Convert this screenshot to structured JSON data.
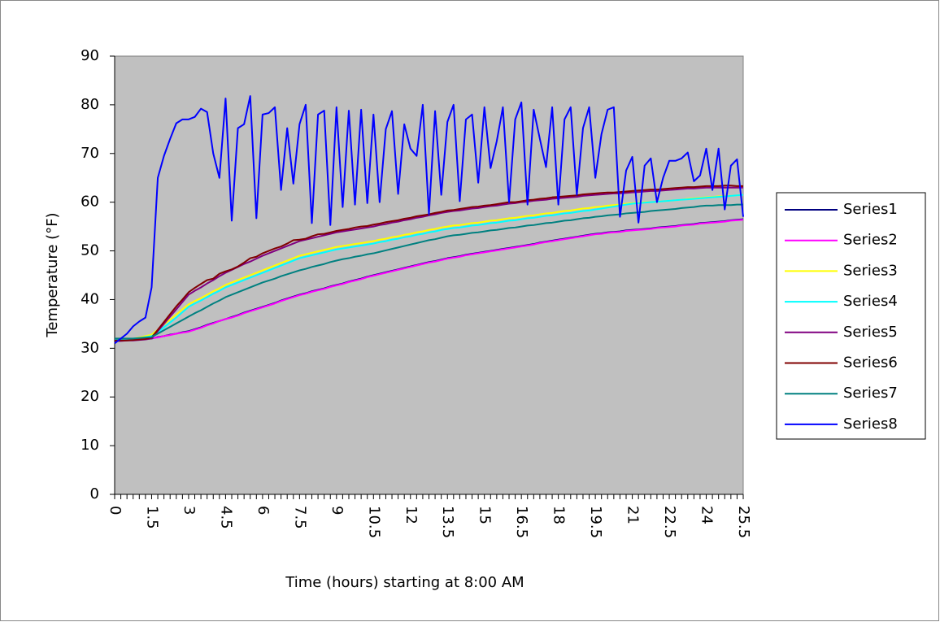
{
  "chart_data": {
    "type": "line",
    "y_label": "Temperature (°F)",
    "x_label": "Time (hours) starting at 8:00 AM",
    "ylim": [
      0,
      90
    ],
    "yticks": [
      0,
      10,
      20,
      30,
      40,
      50,
      60,
      70,
      80,
      90
    ],
    "legend": "right",
    "plot_background": "#c0c0c0",
    "categories": [
      0,
      null,
      null,
      null,
      null,
      null,
      1.5,
      null,
      null,
      null,
      null,
      null,
      3,
      null,
      null,
      null,
      null,
      null,
      4.5,
      null,
      null,
      null,
      null,
      null,
      6,
      null,
      null,
      null,
      null,
      null,
      7.5,
      null,
      null,
      null,
      null,
      null,
      9,
      null,
      null,
      null,
      null,
      null,
      10.5,
      null,
      null,
      null,
      null,
      null,
      12,
      null,
      null,
      null,
      null,
      null,
      13.5,
      null,
      null,
      null,
      null,
      null,
      15,
      null,
      null,
      null,
      null,
      null,
      16.5,
      null,
      null,
      null,
      null,
      null,
      18,
      null,
      null,
      null,
      null,
      null,
      19.5,
      null,
      null,
      null,
      null,
      null,
      21,
      null,
      null,
      null,
      null,
      null,
      22.5,
      null,
      null,
      null,
      null,
      null,
      24,
      null,
      null,
      null,
      null,
      null,
      25.5
    ],
    "series": [
      {
        "name": "Series1",
        "color": "#000080",
        "values": [
          31.5,
          31.6,
          31.7,
          31.8,
          31.8,
          31.9,
          32,
          32.3,
          32.5,
          32.8,
          33,
          33.3,
          33.5,
          33.9,
          34.3,
          34.8,
          35.2,
          35.6,
          36,
          36.4,
          36.8,
          37.3,
          37.7,
          38.1,
          38.5,
          38.9,
          39.3,
          39.8,
          40.2,
          40.6,
          41,
          41.3,
          41.7,
          42,
          42.3,
          42.7,
          43,
          43.3,
          43.7,
          44,
          44.3,
          44.7,
          45,
          45.3,
          45.6,
          45.9,
          46.2,
          46.5,
          46.8,
          47.1,
          47.4,
          47.7,
          47.9,
          48.2,
          48.5,
          48.7,
          48.9,
          49.2,
          49.4,
          49.6,
          49.8,
          50,
          50.2,
          50.4,
          50.6,
          50.8,
          51,
          51.2,
          51.4,
          51.7,
          51.9,
          52.1,
          52.3,
          52.5,
          52.7,
          52.9,
          53.1,
          53.3,
          53.5,
          53.6,
          53.8,
          53.9,
          54,
          54.2,
          54.3,
          54.4,
          54.5,
          54.6,
          54.8,
          54.9,
          55,
          55.1,
          55.3,
          55.4,
          55.5,
          55.7,
          55.8,
          55.9,
          56,
          56.1,
          56.3,
          56.4,
          56.5
        ]
      },
      {
        "name": "Series2",
        "color": "#ff00ff",
        "values": [
          31.6,
          31.6,
          31.7,
          31.7,
          31.8,
          31.9,
          32.1,
          32.2,
          32.5,
          32.7,
          33,
          33.2,
          33.4,
          33.8,
          34.2,
          34.7,
          35.1,
          35.6,
          36,
          36.3,
          36.7,
          37.2,
          37.6,
          38,
          38.4,
          38.8,
          39.2,
          39.7,
          40.1,
          40.5,
          40.9,
          41.2,
          41.6,
          41.9,
          42.2,
          42.6,
          42.9,
          43.2,
          43.6,
          43.9,
          44.2,
          44.6,
          44.9,
          45.2,
          45.5,
          45.8,
          46.1,
          46.4,
          46.7,
          47,
          47.3,
          47.6,
          47.8,
          48.1,
          48.4,
          48.6,
          48.8,
          49.1,
          49.3,
          49.5,
          49.7,
          49.9,
          50.1,
          50.3,
          50.5,
          50.7,
          50.9,
          51.1,
          51.3,
          51.6,
          51.8,
          52,
          52.2,
          52.4,
          52.6,
          52.8,
          53,
          53.2,
          53.4,
          53.5,
          53.7,
          53.8,
          53.9,
          54.1,
          54.2,
          54.3,
          54.4,
          54.5,
          54.7,
          54.8,
          54.9,
          55,
          55.2,
          55.3,
          55.4,
          55.6,
          55.7,
          55.8,
          55.9,
          56,
          56.2,
          56.3,
          56.4
        ]
      },
      {
        "name": "Series3",
        "color": "#ffff00",
        "values": [
          31.8,
          31.8,
          31.9,
          32,
          32.2,
          32.5,
          32.8,
          33.8,
          34.9,
          35.9,
          36.9,
          38,
          39,
          39.7,
          40.3,
          41,
          41.7,
          42.3,
          43,
          43.5,
          44,
          44.5,
          45,
          45.5,
          46,
          46.5,
          47,
          47.5,
          48,
          48.5,
          49,
          49.3,
          49.6,
          49.9,
          50.2,
          50.5,
          50.8,
          51,
          51.2,
          51.4,
          51.6,
          51.8,
          52,
          52.3,
          52.5,
          52.8,
          53,
          53.3,
          53.5,
          53.8,
          54,
          54.3,
          54.5,
          54.8,
          55,
          55.2,
          55.3,
          55.5,
          55.7,
          55.8,
          56,
          56.2,
          56.3,
          56.5,
          56.7,
          56.8,
          57,
          57.2,
          57.3,
          57.5,
          57.7,
          57.8,
          58,
          58.2,
          58.3,
          58.5,
          58.7,
          58.8,
          59,
          59.1,
          59.3,
          59.4,
          59.5,
          59.7,
          59.8,
          59.9,
          60,
          60,
          60.1,
          60.2,
          60.3,
          60.4,
          60.5,
          60.7,
          60.8,
          60.9,
          61,
          61.1,
          61.2,
          61.3,
          61.3,
          61.4,
          61.5
        ]
      },
      {
        "name": "Series4",
        "color": "#00ffff",
        "values": [
          31.8,
          31.8,
          31.9,
          32,
          32.1,
          32.3,
          32.5,
          33.3,
          34.3,
          35.3,
          36.3,
          37.4,
          38.5,
          39.2,
          39.8,
          40.5,
          41.2,
          41.8,
          42.5,
          43,
          43.5,
          44,
          44.5,
          45,
          45.5,
          46,
          46.5,
          47,
          47.5,
          48,
          48.5,
          48.8,
          49.1,
          49.4,
          49.7,
          50,
          50.3,
          50.5,
          50.7,
          50.9,
          51.1,
          51.3,
          51.5,
          51.8,
          52,
          52.3,
          52.5,
          52.8,
          53,
          53.3,
          53.5,
          53.8,
          54,
          54.3,
          54.5,
          54.7,
          54.8,
          55,
          55.2,
          55.3,
          55.5,
          55.7,
          55.8,
          56,
          56.2,
          56.3,
          56.5,
          56.7,
          56.8,
          57,
          57.2,
          57.3,
          57.5,
          57.7,
          57.8,
          58,
          58.2,
          58.3,
          58.5,
          58.7,
          58.9,
          59.1,
          59.3,
          59.5,
          59.7,
          59.8,
          59.9,
          60,
          60.1,
          60.2,
          60.3,
          60.4,
          60.5,
          60.6,
          60.7,
          60.8,
          60.9,
          61,
          61.1,
          61.2,
          61.3,
          61.4,
          61.5
        ]
      },
      {
        "name": "Series5",
        "color": "#800080",
        "values": [
          31.5,
          31.5,
          31.6,
          31.6,
          31.7,
          31.8,
          32,
          33.5,
          35,
          36.5,
          38,
          39.5,
          41,
          41.8,
          42.5,
          43.3,
          44,
          44.8,
          45.5,
          46.1,
          46.7,
          47.3,
          47.8,
          48.4,
          49,
          49.5,
          50,
          50.5,
          51,
          51.5,
          52,
          52.3,
          52.6,
          52.9,
          53.2,
          53.5,
          53.8,
          54,
          54.2,
          54.4,
          54.6,
          54.8,
          55,
          55.3,
          55.5,
          55.8,
          56,
          56.3,
          56.5,
          56.8,
          57,
          57.3,
          57.5,
          57.8,
          58,
          58.2,
          58.3,
          58.5,
          58.7,
          58.8,
          59,
          59.2,
          59.3,
          59.5,
          59.7,
          59.8,
          60,
          60.1,
          60.3,
          60.4,
          60.5,
          60.7,
          60.8,
          60.9,
          61,
          61.1,
          61.3,
          61.4,
          61.5,
          61.6,
          61.7,
          61.8,
          61.8,
          61.9,
          62,
          62.1,
          62.2,
          62.3,
          62.3,
          62.4,
          62.5,
          62.6,
          62.7,
          62.8,
          62.8,
          62.9,
          63,
          63,
          63,
          63,
          63,
          63,
          63
        ]
      },
      {
        "name": "Series6",
        "color": "#800000",
        "values": [
          31.6,
          31.6,
          31.6,
          31.7,
          31.8,
          31.9,
          32.2,
          33.8,
          35.4,
          37,
          38.6,
          40,
          41.5,
          42.4,
          43.2,
          44,
          44.3,
          45.3,
          45.8,
          46.2,
          46.8,
          47.6,
          48.5,
          48.8,
          49.5,
          50,
          50.5,
          50.9,
          51.5,
          52.2,
          52.3,
          52.5,
          53,
          53.4,
          53.5,
          53.8,
          54.1,
          54.3,
          54.5,
          54.8,
          55,
          55.1,
          55.4,
          55.6,
          55.9,
          56.1,
          56.3,
          56.6,
          56.8,
          57.1,
          57.3,
          57.5,
          57.8,
          58,
          58.3,
          58.4,
          58.6,
          58.8,
          59,
          59.1,
          59.3,
          59.4,
          59.6,
          59.8,
          60,
          60,
          60.2,
          60.4,
          60.5,
          60.7,
          60.8,
          61,
          61.1,
          61.2,
          61.3,
          61.4,
          61.6,
          61.7,
          61.8,
          61.9,
          62,
          62,
          62.1,
          62.2,
          62.3,
          62.4,
          62.5,
          62.6,
          62.6,
          62.7,
          62.8,
          62.9,
          63,
          63.1,
          63.1,
          63.2,
          63.3,
          63.3,
          63.3,
          63.4,
          63.4,
          63.3,
          63.3
        ]
      },
      {
        "name": "Series7",
        "color": "#008080",
        "values": [
          32,
          32,
          32,
          32,
          32.1,
          32.2,
          32.3,
          33,
          33.7,
          34.4,
          35.1,
          35.8,
          36.5,
          37.2,
          37.8,
          38.5,
          39.2,
          39.8,
          40.5,
          41,
          41.5,
          42,
          42.5,
          43,
          43.5,
          43.9,
          44.3,
          44.8,
          45.2,
          45.6,
          46,
          46.3,
          46.7,
          47,
          47.3,
          47.7,
          48,
          48.3,
          48.5,
          48.8,
          49,
          49.3,
          49.5,
          49.8,
          50.1,
          50.4,
          50.7,
          51,
          51.3,
          51.6,
          51.9,
          52.2,
          52.4,
          52.7,
          53,
          53.2,
          53.3,
          53.5,
          53.7,
          53.8,
          54,
          54.2,
          54.3,
          54.5,
          54.7,
          54.8,
          55,
          55.2,
          55.3,
          55.5,
          55.7,
          55.8,
          56,
          56.2,
          56.3,
          56.5,
          56.7,
          56.8,
          57,
          57.1,
          57.3,
          57.4,
          57.5,
          57.7,
          57.8,
          57.9,
          58,
          58.2,
          58.3,
          58.4,
          58.5,
          58.6,
          58.8,
          58.9,
          59,
          59.2,
          59.3,
          59.3,
          59.4,
          59.4,
          59.4,
          59.5,
          59.5
        ]
      },
      {
        "name": "Series8",
        "color": "#0000ff",
        "values": [
          31,
          32,
          33,
          34.5,
          35.5,
          36.3,
          42.5,
          65,
          69.5,
          73,
          76.2,
          77,
          77,
          77.5,
          79.2,
          78.5,
          70,
          65,
          81.3,
          56.2,
          75.2,
          76,
          81.8,
          56.7,
          78,
          78.3,
          79.5,
          62.5,
          75.2,
          63.8,
          76,
          80,
          55.7,
          78,
          78.8,
          55.3,
          79.5,
          59,
          78.8,
          59.5,
          79,
          59.8,
          78,
          60,
          75,
          78.7,
          61.7,
          76,
          71,
          69.5,
          80,
          57.5,
          78.7,
          61.5,
          76.5,
          80,
          60.2,
          77,
          78,
          64,
          79.5,
          67,
          72.5,
          79.5,
          60,
          77,
          80.5,
          59.5,
          79,
          73,
          67.2,
          79.5,
          59.5,
          77,
          79.5,
          61.5,
          75.2,
          79.5,
          65,
          74,
          79,
          79.5,
          57,
          66.5,
          69.3,
          55.8,
          67.5,
          69,
          60,
          65,
          68.5,
          68.5,
          69,
          70.2,
          64.3,
          65.5,
          71,
          62.5,
          71,
          58.5,
          67.5,
          68.8,
          57
        ]
      }
    ]
  }
}
